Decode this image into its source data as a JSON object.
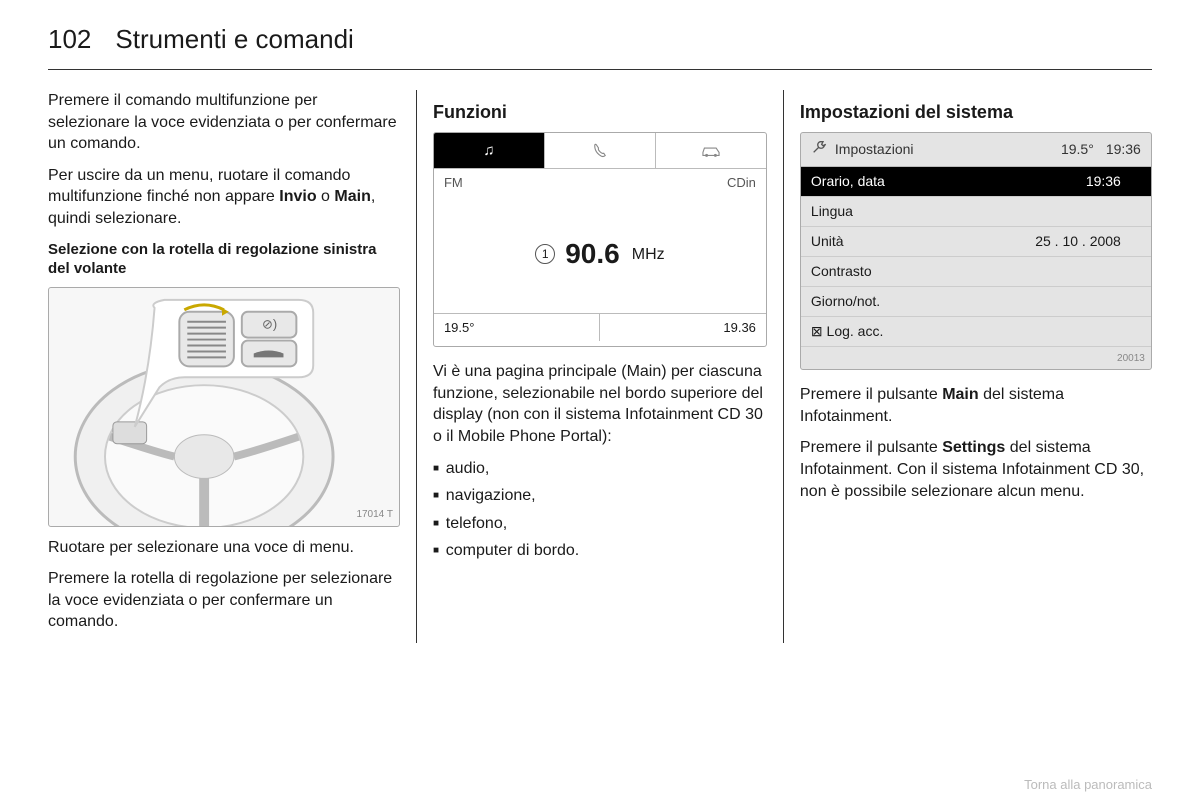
{
  "page_number": "102",
  "chapter": "Strumenti e comandi",
  "col1": {
    "p1": "Premere il comando multifunzione per selezionare la voce evidenziata o per confermare un comando.",
    "p2a": "Per uscire da un menu, ruotare il comando multifunzione finché non appare ",
    "p2_b1": "Invio",
    "p2_mid": " o ",
    "p2_b2": "Main",
    "p2_end": ", quindi selezionare.",
    "sub": "Selezione con la rotella di regolazione sinistra del volante",
    "img_code": "17014 T",
    "p3": "Ruotare per selezionare una voce di menu.",
    "p4": "Premere la rotella di regolazione per selezionare la voce evidenziata o per confermare un comando."
  },
  "col2": {
    "heading": "Funzioni",
    "radio": {
      "tab1": "♫",
      "tab2": "📞",
      "tab3": "🚗",
      "sub_left": "FM",
      "sub_right": "CDin",
      "preset": "1",
      "freq": "90.6",
      "unit": "MHz",
      "temp": "19.5°",
      "time": "19.36"
    },
    "p1": "Vi è una pagina principale (Main) per ciascuna funzione, selezionabile nel bordo superiore del display (non con il sistema Infotainment CD 30 o il Mobile Phone Portal):",
    "list": [
      "audio,",
      "navigazione,",
      "telefono,",
      "computer di bordo."
    ]
  },
  "col3": {
    "heading": "Impostazioni del sistema",
    "settings": {
      "title": "Impostazioni",
      "temp": "19.5°",
      "time": "19:36",
      "rows": [
        {
          "label": "Orario, data",
          "value": "19:36",
          "active": true
        },
        {
          "label": "Lingua",
          "value": ""
        },
        {
          "label": "Unità",
          "value": "25 . 10 . 2008"
        },
        {
          "label": "Contrasto",
          "value": ""
        },
        {
          "label": "Giorno/not.",
          "value": ""
        },
        {
          "label": "⊠ Log. acc.",
          "value": ""
        }
      ],
      "code": "20013"
    },
    "p1a": "Premere il pulsante ",
    "p1_b": "Main",
    "p1_end": " del sistema Infotainment.",
    "p2a": "Premere il pulsante ",
    "p2_b": "Settings",
    "p2_end": " del sistema Infotainment. Con il sistema Infotainment CD 30, non è possibile selezionare alcun menu."
  },
  "footer": "Torna alla panoramica"
}
